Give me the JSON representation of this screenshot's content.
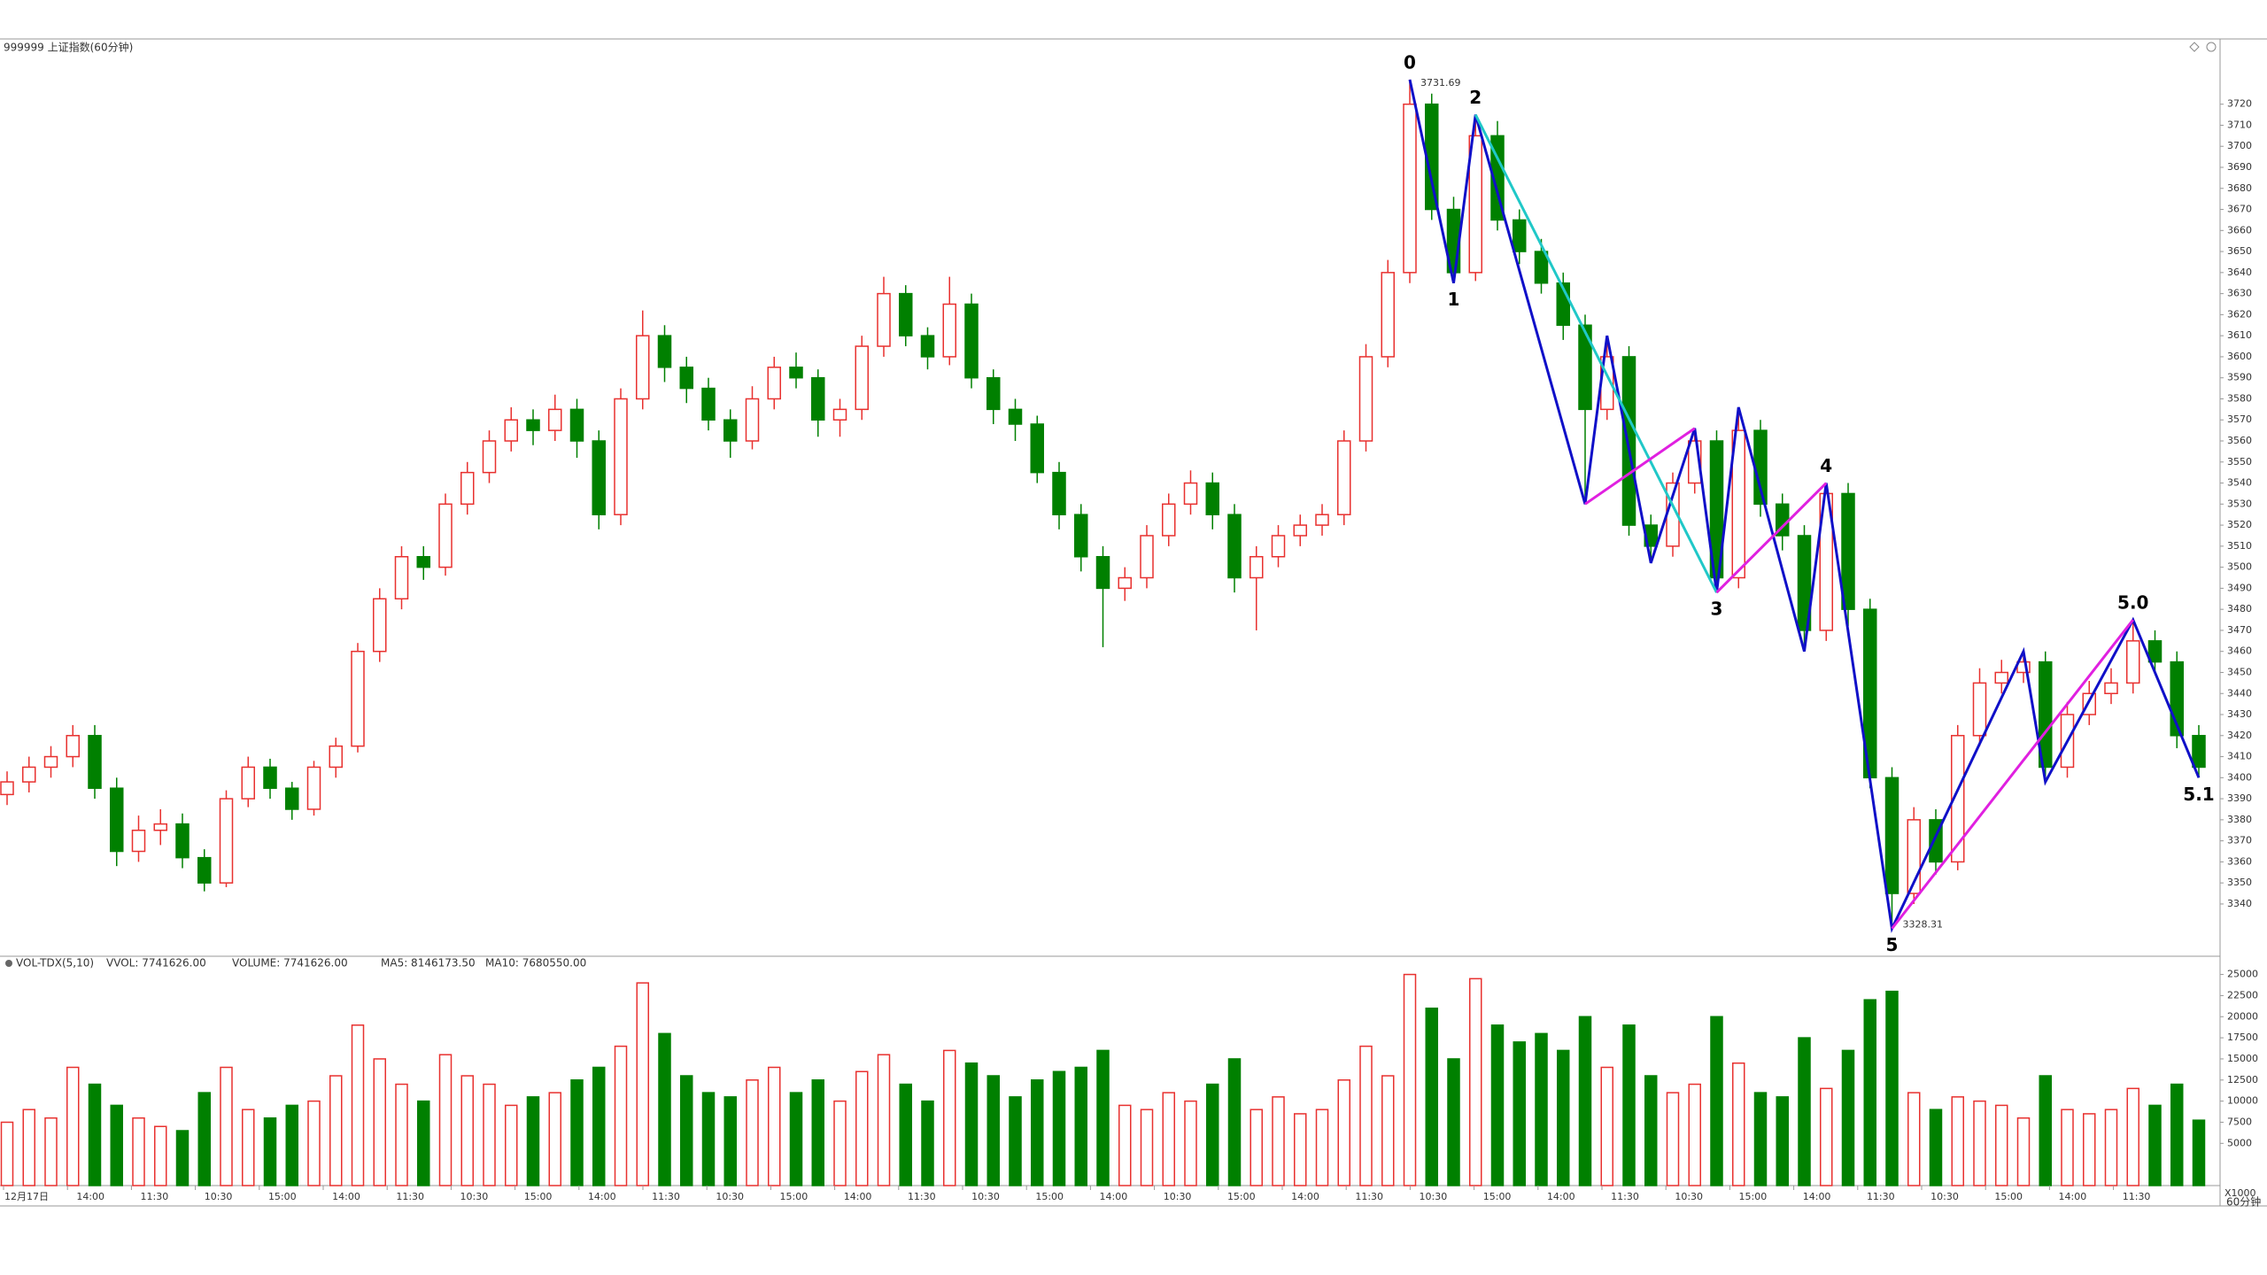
{
  "chart_data": [
    {
      "type": "candlestick",
      "title": "999999 上证指数(60分钟)",
      "open": [
        3392,
        3398,
        3405,
        3410,
        3420,
        3395,
        3365,
        3375,
        3378,
        3362,
        3350,
        3390,
        3405,
        3395,
        3385,
        3405,
        3415,
        3460,
        3485,
        3505,
        3500,
        3530,
        3545,
        3560,
        3570,
        3565,
        3575,
        3560,
        3525,
        3580,
        3610,
        3595,
        3585,
        3570,
        3560,
        3580,
        3595,
        3590,
        3570,
        3575,
        3605,
        3630,
        3610,
        3600,
        3625,
        3590,
        3575,
        3568,
        3545,
        3525,
        3505,
        3490,
        3495,
        3515,
        3530,
        3540,
        3525,
        3495,
        3505,
        3515,
        3520,
        3525,
        3560,
        3600,
        3640,
        3720,
        3670,
        3640,
        3705,
        3665,
        3650,
        3635,
        3615,
        3575,
        3600,
        3520,
        3510,
        3540,
        3560,
        3495,
        3565,
        3530,
        3515,
        3470,
        3535,
        3480,
        3400,
        3345,
        3380,
        3360,
        3420,
        3445,
        3450,
        3455,
        3405,
        3430,
        3440,
        3445,
        3465,
        3455,
        3420
      ],
      "high": [
        3403,
        3410,
        3415,
        3425,
        3425,
        3400,
        3382,
        3385,
        3383,
        3366,
        3394,
        3410,
        3409,
        3398,
        3408,
        3419,
        3464,
        3490,
        3510,
        3510,
        3535,
        3550,
        3565,
        3576,
        3575,
        3582,
        3580,
        3565,
        3585,
        3622,
        3615,
        3600,
        3590,
        3575,
        3586,
        3600,
        3602,
        3594,
        3580,
        3610,
        3638,
        3634,
        3614,
        3638,
        3630,
        3594,
        3580,
        3572,
        3550,
        3530,
        3510,
        3500,
        3520,
        3535,
        3546,
        3545,
        3530,
        3510,
        3520,
        3525,
        3530,
        3565,
        3606,
        3646,
        3731.69,
        3725,
        3676,
        3715,
        3712,
        3670,
        3656,
        3640,
        3620,
        3610,
        3605,
        3525,
        3545,
        3566,
        3565,
        3576,
        3570,
        3535,
        3520,
        3540,
        3540,
        3485,
        3405,
        3386,
        3385,
        3425,
        3452,
        3456,
        3460,
        3460,
        3436,
        3446,
        3452,
        3475,
        3470,
        3460,
        3425
      ],
      "low": [
        3387,
        3393,
        3400,
        3405,
        3390,
        3358,
        3360,
        3368,
        3357,
        3346,
        3348,
        3386,
        3390,
        3380,
        3382,
        3400,
        3412,
        3455,
        3480,
        3494,
        3496,
        3525,
        3540,
        3555,
        3558,
        3560,
        3552,
        3518,
        3520,
        3575,
        3588,
        3578,
        3565,
        3552,
        3556,
        3575,
        3585,
        3562,
        3562,
        3570,
        3600,
        3605,
        3594,
        3596,
        3585,
        3568,
        3560,
        3540,
        3518,
        3498,
        3462,
        3484,
        3490,
        3510,
        3525,
        3518,
        3488,
        3470,
        3500,
        3510,
        3515,
        3520,
        3555,
        3595,
        3635,
        3665,
        3635,
        3636,
        3660,
        3644,
        3630,
        3608,
        3530,
        3570,
        3515,
        3502,
        3505,
        3535,
        3488,
        3490,
        3524,
        3508,
        3460,
        3465,
        3472,
        3395,
        3328.31,
        3340,
        3354,
        3356,
        3415,
        3440,
        3445,
        3398,
        3400,
        3425,
        3435,
        3440,
        3450,
        3414,
        3400
      ],
      "close": [
        3398,
        3405,
        3410,
        3420,
        3395,
        3365,
        3375,
        3378,
        3362,
        3350,
        3390,
        3405,
        3395,
        3385,
        3405,
        3415,
        3460,
        3485,
        3505,
        3500,
        3530,
        3545,
        3560,
        3570,
        3565,
        3575,
        3560,
        3525,
        3580,
        3610,
        3595,
        3585,
        3570,
        3560,
        3580,
        3595,
        3590,
        3570,
        3575,
        3605,
        3630,
        3610,
        3600,
        3625,
        3590,
        3575,
        3568,
        3545,
        3525,
        3505,
        3490,
        3495,
        3515,
        3530,
        3540,
        3525,
        3495,
        3505,
        3515,
        3520,
        3525,
        3560,
        3600,
        3640,
        3720,
        3670,
        3640,
        3705,
        3665,
        3650,
        3635,
        3615,
        3575,
        3600,
        3520,
        3510,
        3540,
        3560,
        3495,
        3565,
        3530,
        3515,
        3470,
        3535,
        3480,
        3400,
        3345,
        3380,
        3360,
        3420,
        3445,
        3450,
        3455,
        3405,
        3430,
        3440,
        3445,
        3465,
        3455,
        3420,
        3405
      ],
      "up_color": "#e8312f",
      "down_color": "#008000",
      "ylim": [
        3316,
        3751
      ],
      "yticks": [
        3340,
        3350,
        3360,
        3370,
        3380,
        3390,
        3400,
        3410,
        3420,
        3430,
        3440,
        3450,
        3460,
        3470,
        3480,
        3490,
        3500,
        3510,
        3520,
        3530,
        3540,
        3550,
        3560,
        3570,
        3580,
        3590,
        3600,
        3610,
        3620,
        3630,
        3640,
        3650,
        3660,
        3670,
        3680,
        3690,
        3700,
        3710,
        3720
      ],
      "waves": [
        {
          "color": "#1010c8",
          "points": [
            [
              64,
              3731.69
            ],
            [
              66,
              3635
            ],
            [
              67,
              3715
            ],
            [
              72,
              3530
            ],
            [
              73,
              3610
            ],
            [
              75,
              3502
            ],
            [
              77,
              3566
            ],
            [
              78,
              3488
            ],
            [
              79,
              3576
            ],
            [
              82,
              3460
            ],
            [
              83,
              3540
            ],
            [
              86,
              3328.31
            ],
            [
              92,
              3460
            ],
            [
              93,
              3398
            ],
            [
              97,
              3475
            ],
            [
              100,
              3400
            ]
          ],
          "labels": [
            "0",
            "1",
            "2",
            null,
            null,
            null,
            null,
            "3",
            null,
            null,
            "4",
            "5",
            null,
            null,
            "5.0",
            "5.1"
          ]
        },
        {
          "color": "#20c8c8",
          "points": [
            [
              67,
              3715
            ],
            [
              78,
              3488
            ]
          ]
        },
        {
          "color": "#e020e0",
          "points": [
            [
              72,
              3530
            ],
            [
              77,
              3566
            ]
          ]
        },
        {
          "color": "#e020e0",
          "points": [
            [
              78,
              3488
            ],
            [
              83,
              3540
            ]
          ]
        },
        {
          "color": "#e020e0",
          "points": [
            [
              86,
              3328.31
            ],
            [
              97,
              3475
            ]
          ]
        }
      ]
    },
    {
      "type": "bar",
      "title": "VOL-TDX(5,10)",
      "header": [
        {
          "text": "VVOL: 7741626.00",
          "color": "#1010c8"
        },
        {
          "text": "VOLUME: 7741626.00",
          "color": "#e020e0"
        },
        {
          "text": "MA5: 8146173.50",
          "color": "#e020e0"
        },
        {
          "text": "MA10: 7680550.00",
          "color": "#888888"
        }
      ],
      "values": [
        7500,
        9000,
        8000,
        14000,
        12000,
        9500,
        8000,
        7000,
        6500,
        11000,
        14000,
        9000,
        8000,
        9500,
        10000,
        13000,
        19000,
        15000,
        12000,
        10000,
        15500,
        13000,
        12000,
        9500,
        10500,
        11000,
        12500,
        14000,
        16500,
        24000,
        18000,
        13000,
        11000,
        10500,
        12500,
        14000,
        11000,
        12500,
        10000,
        13500,
        15500,
        12000,
        10000,
        16000,
        14500,
        13000,
        10500,
        12500,
        13500,
        14000,
        16000,
        9500,
        9000,
        11000,
        10000,
        12000,
        15000,
        9000,
        10500,
        8500,
        9000,
        12500,
        16500,
        13000,
        25000,
        21000,
        15000,
        24500,
        19000,
        17000,
        18000,
        16000,
        20000,
        14000,
        19000,
        13000,
        11000,
        12000,
        20000,
        14500,
        11000,
        10500,
        17500,
        11500,
        16000,
        22000,
        23000,
        11000,
        9000,
        10500,
        10000,
        9500,
        8000,
        13000,
        9000,
        8500,
        9000,
        11500,
        9500,
        12000,
        7742
      ],
      "ylim": [
        0,
        27000
      ],
      "yticks": [
        5000,
        7500,
        10000,
        12500,
        15000,
        17500,
        20000,
        22500,
        25000
      ],
      "unit_label": "X1000",
      "x_labels": [
        "12月17日",
        "14:00",
        "11:30",
        "10:30",
        "15:00",
        "14:00",
        "11:30",
        "10:30",
        "15:00",
        "14:00",
        "11:30",
        "10:30",
        "15:00",
        "14:00",
        "11:30",
        "10:30",
        "15:00",
        "14:00",
        "10:30",
        "15:00",
        "14:00",
        "11:30",
        "10:30",
        "15:00",
        "14:00",
        "11:30",
        "10:30",
        "15:00",
        "14:00",
        "11:30",
        "10:30",
        "15:00",
        "14:00",
        "11:30"
      ],
      "period_label": "60分钟"
    }
  ]
}
